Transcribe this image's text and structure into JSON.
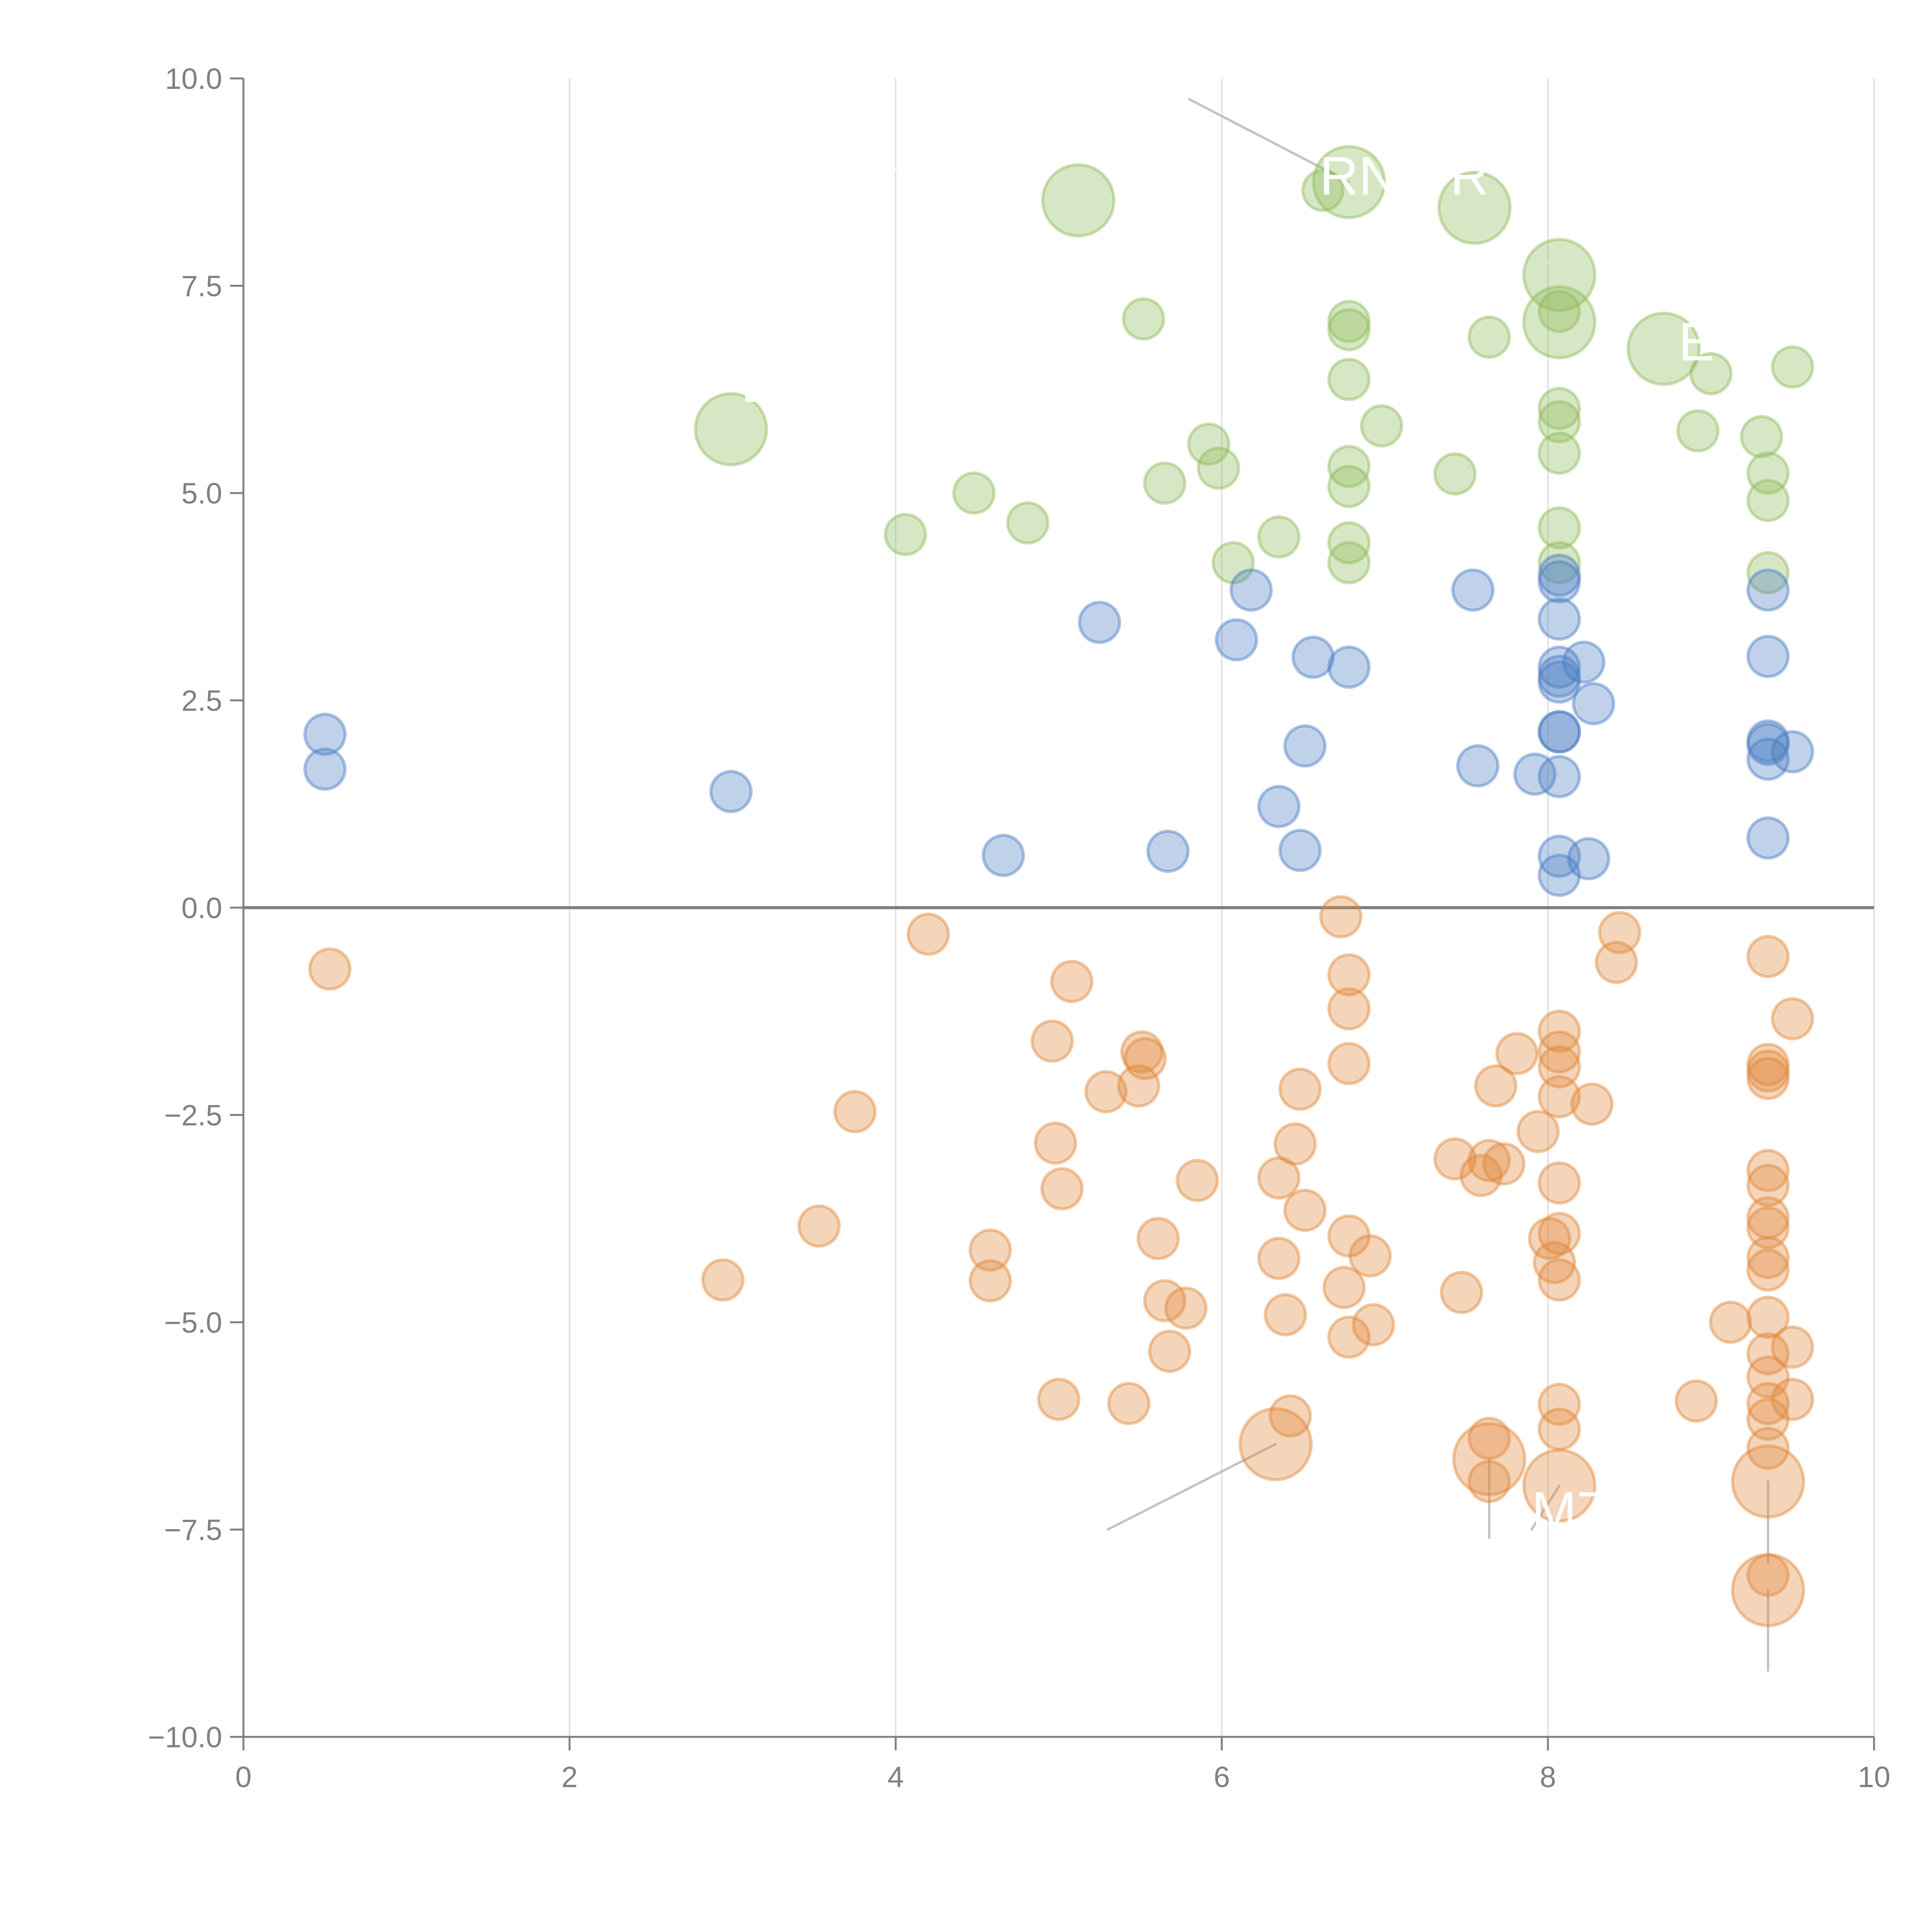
{
  "chart_data": {
    "type": "scatter",
    "title": "",
    "xlabel": "",
    "ylabel": "",
    "xlim": [
      0,
      10
    ],
    "ylim": [
      -10,
      10
    ],
    "x_ticks": [
      "0",
      "2",
      "4",
      "6",
      "8",
      "10"
    ],
    "x_tick_values": [
      0,
      2,
      4,
      6,
      8,
      10
    ],
    "y_ticks": [
      "10.0",
      "7.5",
      "5.0",
      "2.5",
      "0.0",
      "−2.5",
      "−5.0",
      "−7.5",
      "−10.0"
    ],
    "y_tick_values": [
      10,
      7.5,
      5,
      2.5,
      0,
      -2.5,
      -5,
      -7.5,
      -10
    ],
    "grid": "vertical at x ticks",
    "reference_line": {
      "y": 0
    },
    "legend": "none",
    "colors": {
      "green": "#8dbb5a",
      "blue": "#4a7dc4",
      "orange": "#e08838",
      "axis": "#808080",
      "grid": "#d9d9d9",
      "leader": "#b3b3b3"
    },
    "series": [
      {
        "name": "green",
        "color": "#8dbb5a",
        "points": [
          {
            "x": 2.99,
            "y": 5.77,
            "size": "large"
          },
          {
            "x": 5.12,
            "y": 8.53,
            "size": "large"
          },
          {
            "x": 6.78,
            "y": 8.75,
            "size": "large"
          },
          {
            "x": 6.62,
            "y": 8.65,
            "size": "small"
          },
          {
            "x": 7.55,
            "y": 8.44,
            "size": "large"
          },
          {
            "x": 8.07,
            "y": 7.63,
            "size": "large"
          },
          {
            "x": 8.07,
            "y": 7.06,
            "size": "large"
          },
          {
            "x": 8.71,
            "y": 6.74,
            "size": "large"
          },
          {
            "x": 5.52,
            "y": 7.1,
            "size": "small"
          },
          {
            "x": 6.78,
            "y": 7.07,
            "size": "small"
          },
          {
            "x": 6.78,
            "y": 6.97,
            "size": "small"
          },
          {
            "x": 7.64,
            "y": 6.88,
            "size": "small"
          },
          {
            "x": 6.78,
            "y": 6.37,
            "size": "small"
          },
          {
            "x": 6.98,
            "y": 5.81,
            "size": "small"
          },
          {
            "x": 8.07,
            "y": 7.19,
            "size": "small"
          },
          {
            "x": 9.0,
            "y": 6.44,
            "size": "small"
          },
          {
            "x": 9.5,
            "y": 6.52,
            "size": "small"
          },
          {
            "x": 8.07,
            "y": 6.02,
            "size": "small"
          },
          {
            "x": 8.07,
            "y": 5.86,
            "size": "small"
          },
          {
            "x": 8.07,
            "y": 5.48,
            "size": "small"
          },
          {
            "x": 8.92,
            "y": 5.75,
            "size": "small"
          },
          {
            "x": 9.31,
            "y": 5.68,
            "size": "small"
          },
          {
            "x": 9.35,
            "y": 5.24,
            "size": "small"
          },
          {
            "x": 9.35,
            "y": 4.91,
            "size": "small"
          },
          {
            "x": 5.92,
            "y": 5.59,
            "size": "small"
          },
          {
            "x": 5.98,
            "y": 5.3,
            "size": "small"
          },
          {
            "x": 5.65,
            "y": 5.12,
            "size": "small"
          },
          {
            "x": 6.78,
            "y": 5.32,
            "size": "small"
          },
          {
            "x": 6.78,
            "y": 5.08,
            "size": "small"
          },
          {
            "x": 7.43,
            "y": 5.23,
            "size": "small"
          },
          {
            "x": 4.48,
            "y": 5.0,
            "size": "small"
          },
          {
            "x": 4.81,
            "y": 4.64,
            "size": "small"
          },
          {
            "x": 4.06,
            "y": 4.5,
            "size": "small"
          },
          {
            "x": 6.35,
            "y": 4.47,
            "size": "small"
          },
          {
            "x": 6.78,
            "y": 4.4,
            "size": "small"
          },
          {
            "x": 6.78,
            "y": 4.16,
            "size": "small"
          },
          {
            "x": 6.07,
            "y": 4.16,
            "size": "small"
          },
          {
            "x": 8.07,
            "y": 4.58,
            "size": "small"
          },
          {
            "x": 8.07,
            "y": 4.16,
            "size": "small"
          },
          {
            "x": 9.35,
            "y": 4.04,
            "size": "small"
          }
        ]
      },
      {
        "name": "blue",
        "color": "#4a7dc4",
        "points": [
          {
            "x": 0.5,
            "y": 2.09
          },
          {
            "x": 0.5,
            "y": 1.67
          },
          {
            "x": 2.99,
            "y": 1.4
          },
          {
            "x": 4.66,
            "y": 0.63
          },
          {
            "x": 5.67,
            "y": 0.68
          },
          {
            "x": 6.48,
            "y": 0.69
          },
          {
            "x": 5.25,
            "y": 3.44
          },
          {
            "x": 6.09,
            "y": 3.23
          },
          {
            "x": 6.18,
            "y": 3.83
          },
          {
            "x": 6.56,
            "y": 3.02
          },
          {
            "x": 6.78,
            "y": 2.9
          },
          {
            "x": 6.51,
            "y": 1.95
          },
          {
            "x": 6.35,
            "y": 1.22
          },
          {
            "x": 7.54,
            "y": 3.83
          },
          {
            "x": 7.57,
            "y": 1.71
          },
          {
            "x": 7.92,
            "y": 1.61
          },
          {
            "x": 8.07,
            "y": 4.01
          },
          {
            "x": 8.07,
            "y": 3.93
          },
          {
            "x": 8.07,
            "y": 3.48
          },
          {
            "x": 8.07,
            "y": 2.9
          },
          {
            "x": 8.07,
            "y": 2.79
          },
          {
            "x": 8.07,
            "y": 2.72
          },
          {
            "x": 8.22,
            "y": 2.96
          },
          {
            "x": 8.28,
            "y": 2.46
          },
          {
            "x": 8.07,
            "y": 2.12
          },
          {
            "x": 8.07,
            "y": 2.12
          },
          {
            "x": 8.07,
            "y": 1.58
          },
          {
            "x": 8.07,
            "y": 0.62
          },
          {
            "x": 8.07,
            "y": 0.39
          },
          {
            "x": 8.25,
            "y": 0.59
          },
          {
            "x": 9.35,
            "y": 3.83
          },
          {
            "x": 9.35,
            "y": 3.03
          },
          {
            "x": 9.35,
            "y": 2.01
          },
          {
            "x": 9.35,
            "y": 1.97
          },
          {
            "x": 9.35,
            "y": 1.79
          },
          {
            "x": 9.5,
            "y": 1.88
          },
          {
            "x": 9.35,
            "y": 0.84
          }
        ]
      },
      {
        "name": "orange",
        "color": "#e08838",
        "points": [
          {
            "x": 0.53,
            "y": -0.74,
            "size": "small"
          },
          {
            "x": 4.2,
            "y": -0.32,
            "size": "small"
          },
          {
            "x": 5.08,
            "y": -0.89,
            "size": "small"
          },
          {
            "x": 4.96,
            "y": -1.61,
            "size": "small"
          },
          {
            "x": 3.75,
            "y": -2.46,
            "size": "small"
          },
          {
            "x": 3.53,
            "y": -3.84,
            "size": "small"
          },
          {
            "x": 2.94,
            "y": -4.49,
            "size": "small"
          },
          {
            "x": 5.29,
            "y": -2.22,
            "size": "small"
          },
          {
            "x": 5.51,
            "y": -1.74,
            "size": "small"
          },
          {
            "x": 5.53,
            "y": -1.82,
            "size": "small"
          },
          {
            "x": 5.49,
            "y": -2.15,
            "size": "small"
          },
          {
            "x": 4.98,
            "y": -2.84,
            "size": "small"
          },
          {
            "x": 5.02,
            "y": -3.39,
            "size": "small"
          },
          {
            "x": 4.58,
            "y": -4.13,
            "size": "small"
          },
          {
            "x": 4.58,
            "y": -4.5,
            "size": "small"
          },
          {
            "x": 5.85,
            "y": -3.29,
            "size": "small"
          },
          {
            "x": 5.61,
            "y": -3.99,
            "size": "small"
          },
          {
            "x": 5.65,
            "y": -4.74,
            "size": "small"
          },
          {
            "x": 5.78,
            "y": -4.83,
            "size": "small"
          },
          {
            "x": 5.68,
            "y": -5.35,
            "size": "small"
          },
          {
            "x": 5.0,
            "y": -5.93,
            "size": "small"
          },
          {
            "x": 5.43,
            "y": -5.98,
            "size": "small"
          },
          {
            "x": 6.42,
            "y": -6.13,
            "size": "small"
          },
          {
            "x": 6.33,
            "y": -6.47,
            "size": "large"
          },
          {
            "x": 6.73,
            "y": -0.11,
            "size": "small"
          },
          {
            "x": 6.78,
            "y": -0.81,
            "size": "small"
          },
          {
            "x": 6.78,
            "y": -1.22,
            "size": "small"
          },
          {
            "x": 6.78,
            "y": -1.88,
            "size": "small"
          },
          {
            "x": 6.48,
            "y": -2.19,
            "size": "small"
          },
          {
            "x": 6.45,
            "y": -2.85,
            "size": "small"
          },
          {
            "x": 6.35,
            "y": -3.26,
            "size": "small"
          },
          {
            "x": 6.51,
            "y": -3.65,
            "size": "small"
          },
          {
            "x": 6.78,
            "y": -3.96,
            "size": "small"
          },
          {
            "x": 6.91,
            "y": -4.2,
            "size": "small"
          },
          {
            "x": 6.35,
            "y": -4.23,
            "size": "small"
          },
          {
            "x": 6.75,
            "y": -4.58,
            "size": "small"
          },
          {
            "x": 6.39,
            "y": -4.91,
            "size": "small"
          },
          {
            "x": 6.93,
            "y": -5.03,
            "size": "small"
          },
          {
            "x": 6.78,
            "y": -5.18,
            "size": "small"
          },
          {
            "x": 7.43,
            "y": -3.03,
            "size": "small"
          },
          {
            "x": 7.59,
            "y": -3.23,
            "size": "small"
          },
          {
            "x": 7.64,
            "y": -3.05,
            "size": "small"
          },
          {
            "x": 7.73,
            "y": -3.09,
            "size": "small"
          },
          {
            "x": 7.68,
            "y": -2.15,
            "size": "small"
          },
          {
            "x": 7.81,
            "y": -1.76,
            "size": "small"
          },
          {
            "x": 7.47,
            "y": -4.64,
            "size": "small"
          },
          {
            "x": 7.64,
            "y": -6.4,
            "size": "small"
          },
          {
            "x": 7.64,
            "y": -6.92,
            "size": "small"
          },
          {
            "x": 7.64,
            "y": -6.65,
            "size": "large"
          },
          {
            "x": 7.94,
            "y": -2.7,
            "size": "small"
          },
          {
            "x": 8.07,
            "y": -1.49,
            "size": "small"
          },
          {
            "x": 8.07,
            "y": -1.74,
            "size": "small"
          },
          {
            "x": 8.07,
            "y": -1.92,
            "size": "small"
          },
          {
            "x": 8.07,
            "y": -2.28,
            "size": "small"
          },
          {
            "x": 8.27,
            "y": -2.37,
            "size": "small"
          },
          {
            "x": 8.07,
            "y": -3.32,
            "size": "small"
          },
          {
            "x": 8.07,
            "y": -3.93,
            "size": "small"
          },
          {
            "x": 8.01,
            "y": -3.99,
            "size": "small"
          },
          {
            "x": 8.04,
            "y": -4.28,
            "size": "small"
          },
          {
            "x": 8.07,
            "y": -4.49,
            "size": "small"
          },
          {
            "x": 8.07,
            "y": -5.99,
            "size": "small"
          },
          {
            "x": 8.07,
            "y": -6.29,
            "size": "small"
          },
          {
            "x": 8.07,
            "y": -6.97,
            "size": "large"
          },
          {
            "x": 8.44,
            "y": -0.3,
            "size": "small"
          },
          {
            "x": 8.42,
            "y": -0.66,
            "size": "small"
          },
          {
            "x": 9.5,
            "y": -1.34,
            "size": "small"
          },
          {
            "x": 9.35,
            "y": -0.59,
            "size": "small"
          },
          {
            "x": 9.35,
            "y": -1.89,
            "size": "small"
          },
          {
            "x": 9.35,
            "y": -1.97,
            "size": "small"
          },
          {
            "x": 9.35,
            "y": -2.06,
            "size": "small"
          },
          {
            "x": 9.35,
            "y": -3.17,
            "size": "small"
          },
          {
            "x": 9.35,
            "y": -3.35,
            "size": "small"
          },
          {
            "x": 9.35,
            "y": -3.74,
            "size": "small"
          },
          {
            "x": 9.35,
            "y": -3.86,
            "size": "small"
          },
          {
            "x": 9.35,
            "y": -4.22,
            "size": "small"
          },
          {
            "x": 9.35,
            "y": -4.37,
            "size": "small"
          },
          {
            "x": 9.12,
            "y": -5.0,
            "size": "small"
          },
          {
            "x": 9.35,
            "y": -4.94,
            "size": "small"
          },
          {
            "x": 9.5,
            "y": -5.3,
            "size": "small"
          },
          {
            "x": 9.35,
            "y": -5.38,
            "size": "small"
          },
          {
            "x": 9.35,
            "y": -5.66,
            "size": "small"
          },
          {
            "x": 9.5,
            "y": -5.93,
            "size": "small"
          },
          {
            "x": 9.35,
            "y": -5.98,
            "size": "small"
          },
          {
            "x": 9.35,
            "y": -6.17,
            "size": "small"
          },
          {
            "x": 8.91,
            "y": -5.95,
            "size": "small"
          },
          {
            "x": 9.35,
            "y": -6.52,
            "size": "small"
          },
          {
            "x": 9.35,
            "y": -6.92,
            "size": "large"
          },
          {
            "x": 9.35,
            "y": -8.05,
            "size": "small"
          },
          {
            "x": 9.35,
            "y": -8.23,
            "size": "large"
          }
        ]
      }
    ],
    "annotations": [
      {
        "text": "L",
        "point": {
          "x": 2.99,
          "y": 5.77
        },
        "label_at": {
          "x": 3.05,
          "y": 6.1
        },
        "leader_color": "white"
      },
      {
        "text": "",
        "point": {
          "x": 5.12,
          "y": 8.53
        },
        "label_at": {
          "x": 4.0,
          "y": 8.9
        },
        "leader_color": "white"
      },
      {
        "text": "RN",
        "point": {
          "x": 6.78,
          "y": 8.75
        },
        "label_at": {
          "x": 6.6,
          "y": 8.6
        },
        "leader_color": "gray",
        "leader_from": {
          "x": 5.8,
          "y": 9.75
        }
      },
      {
        "text": "R",
        "point": {
          "x": 7.55,
          "y": 8.44
        },
        "label_at": {
          "x": 7.4,
          "y": 8.6
        },
        "leader_color": "white"
      },
      {
        "text": "",
        "point": {
          "x": 8.07,
          "y": 7.63
        },
        "label_at": {
          "x": 7.7,
          "y": 8.4
        },
        "leader_color": "white"
      },
      {
        "text": "",
        "point": {
          "x": 8.07,
          "y": 7.06
        },
        "label_at": {
          "x": 8.3,
          "y": 7.9
        },
        "leader_color": "white"
      },
      {
        "text": "E",
        "point": {
          "x": 8.71,
          "y": 6.74
        },
        "label_at": {
          "x": 8.8,
          "y": 6.6
        },
        "leader_color": "white"
      },
      {
        "text": "",
        "point": {
          "x": 6.33,
          "y": -6.47
        },
        "label_at": {
          "x": 5.3,
          "y": -7.5
        },
        "leader_color": "gray"
      },
      {
        "text": "",
        "point": {
          "x": 7.64,
          "y": -6.65
        },
        "label_at": {
          "x": 7.64,
          "y": -7.6
        },
        "leader_color": "gray"
      },
      {
        "text": "M7",
        "point": {
          "x": 8.07,
          "y": -6.97
        },
        "label_at": {
          "x": 7.9,
          "y": -7.5
        },
        "leader_color": "gray"
      },
      {
        "text": "",
        "point": {
          "x": 9.35,
          "y": -6.92
        },
        "label_at": {
          "x": 9.35,
          "y": -7.9
        },
        "leader_color": "gray"
      },
      {
        "text": "",
        "point": {
          "x": 9.35,
          "y": -8.23
        },
        "label_at": {
          "x": 9.35,
          "y": -9.2
        },
        "leader_color": "gray"
      }
    ]
  }
}
